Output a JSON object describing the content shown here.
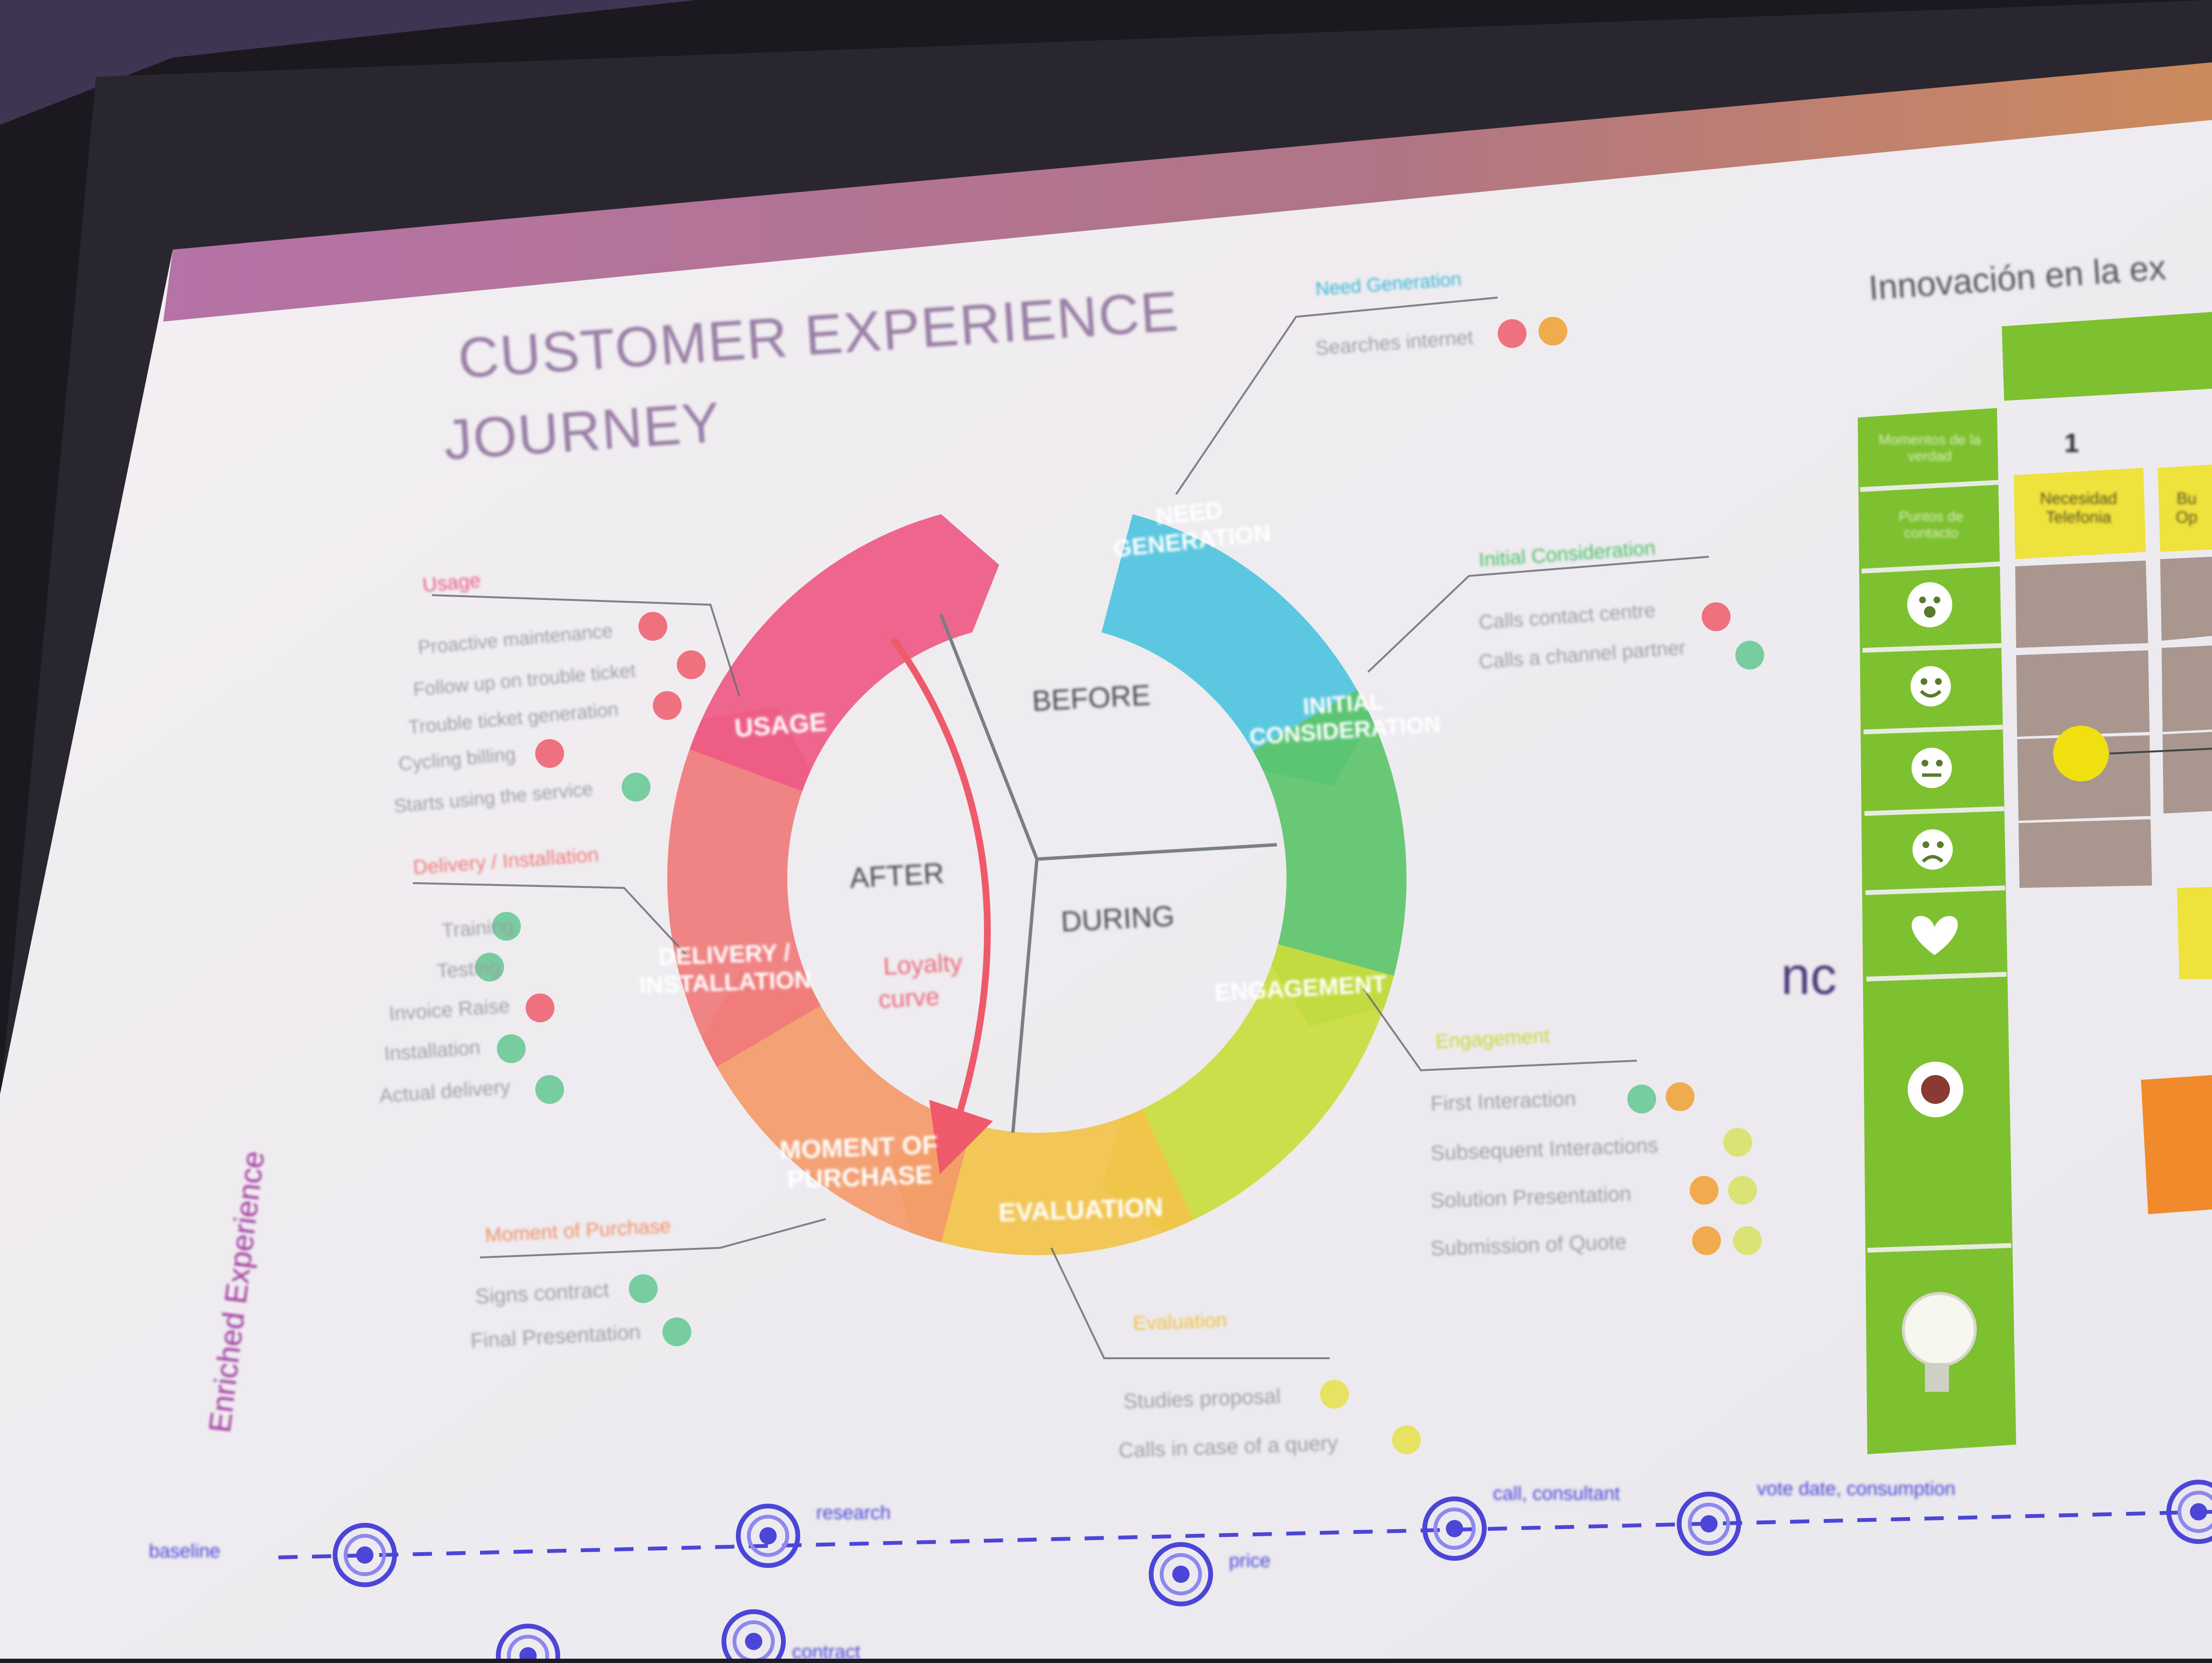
{
  "slide": {
    "title_line1": "CUSTOMER EXPERIENCE",
    "title_line2": "JOURNEY",
    "right_title": "Innovación en la ex",
    "side_text": "Enriched Experience",
    "nc_text": "nc"
  },
  "wheel": {
    "segments": [
      {
        "label": "NEED GENERATION",
        "color": "#4fc3de"
      },
      {
        "label": "INITIAL CONSIDERATION",
        "color": "#5cc46a"
      },
      {
        "label": "ENGAGEMENT",
        "color": "#c9dc3c"
      },
      {
        "label": "EVALUATION",
        "color": "#f2c34a"
      },
      {
        "label": "MOMENT OF PURCHASE",
        "color": "#f39a6a"
      },
      {
        "label": "DELIVERY / INSTALLATION",
        "color": "#f07a7a"
      },
      {
        "label": "USAGE",
        "color": "#ee5a84"
      }
    ],
    "phases": {
      "before": "BEFORE",
      "during": "DURING",
      "after": "AFTER"
    },
    "loyalty_line1": "Loyalty",
    "loyalty_line2": "curve"
  },
  "callouts": {
    "need": {
      "title": "Need Generation",
      "items": [
        "Searches internet"
      ]
    },
    "initial": {
      "title": "Initial Consideration",
      "items": [
        "Calls contact centre",
        "Calls a channel partner"
      ]
    },
    "engagement": {
      "title": "Engagement",
      "items": [
        "First Interaction",
        "Subsequent Interactions",
        "Solution Presentation",
        "Submission of Quote"
      ]
    },
    "evaluation": {
      "title": "Evaluation",
      "items": [
        "Studies proposal",
        "Calls in case of a query"
      ]
    },
    "purchase": {
      "title": "Moment of Purchase",
      "items": [
        "Signs contract",
        "Final Presentation"
      ]
    },
    "delivery": {
      "title": "Delivery / Installation",
      "items": [
        "Training",
        "Testing",
        "Invoice Raise",
        "Installation",
        "Actual delivery"
      ]
    },
    "usage": {
      "title": "Usage",
      "items": [
        "Proactive maintenance",
        "Follow up on trouble ticket",
        "Trouble ticket generation",
        "Cycling billing",
        "Starts using the service"
      ]
    }
  },
  "grid": {
    "col_number": "1",
    "side_cells": [
      "Momentos de la verdad",
      "Puntos de contacto"
    ],
    "yellow_cells": [
      "Necesidad Telefonia",
      "Bu Op"
    ]
  },
  "colors": {
    "screen": "#f2f0f3",
    "band": "#a8608e",
    "title": "#9a7fa6",
    "green": "#7dc030",
    "grey_cell": "#a8968f",
    "yellow_cell": "#f0e23c",
    "orange_cell": "#f08a2a",
    "timeline": "#4b45d8"
  },
  "timeline": {
    "labels": [
      "baseline",
      "research",
      "price",
      "call, consultant",
      "vote date, consumption",
      "contract"
    ]
  },
  "icons": [
    "smiley-sad-icon",
    "warning-icon",
    "smiley-happy-icon",
    "smiley-neutral-icon",
    "heart-icon",
    "lightbulb-icon",
    "target-icon"
  ]
}
